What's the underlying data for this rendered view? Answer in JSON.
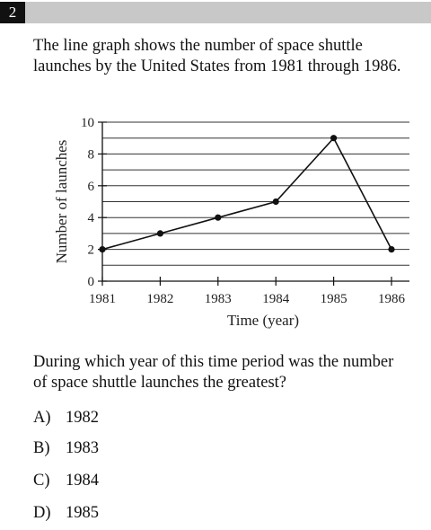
{
  "question_number": "2",
  "prompt": "The line graph shows the number of space shuttle launches by the United States from 1981 through 1986.",
  "question": "During which year of this time period was the number of space shuttle launches the greatest?",
  "choices": [
    {
      "letter": "A)",
      "text": "1982"
    },
    {
      "letter": "B)",
      "text": "1983"
    },
    {
      "letter": "C)",
      "text": "1984"
    },
    {
      "letter": "D)",
      "text": "1985"
    }
  ],
  "chart_data": {
    "type": "line",
    "x": [
      1981,
      1982,
      1983,
      1984,
      1985,
      1986
    ],
    "values": [
      2,
      3,
      4,
      5,
      9,
      2
    ],
    "x_tick_labels": [
      "1981",
      "1982",
      "1983",
      "1984",
      "1985",
      "1986"
    ],
    "y_tick_labels": [
      "0",
      "2",
      "4",
      "6",
      "8",
      "10"
    ],
    "y_ticks": [
      0,
      2,
      4,
      6,
      8,
      10
    ],
    "xlabel": "Time (year)",
    "ylabel": "Number of launches",
    "xlim": [
      1981,
      1986
    ],
    "ylim": [
      0,
      10
    ],
    "gridlines_every": 1,
    "grid": true,
    "line_color": "#111111"
  }
}
